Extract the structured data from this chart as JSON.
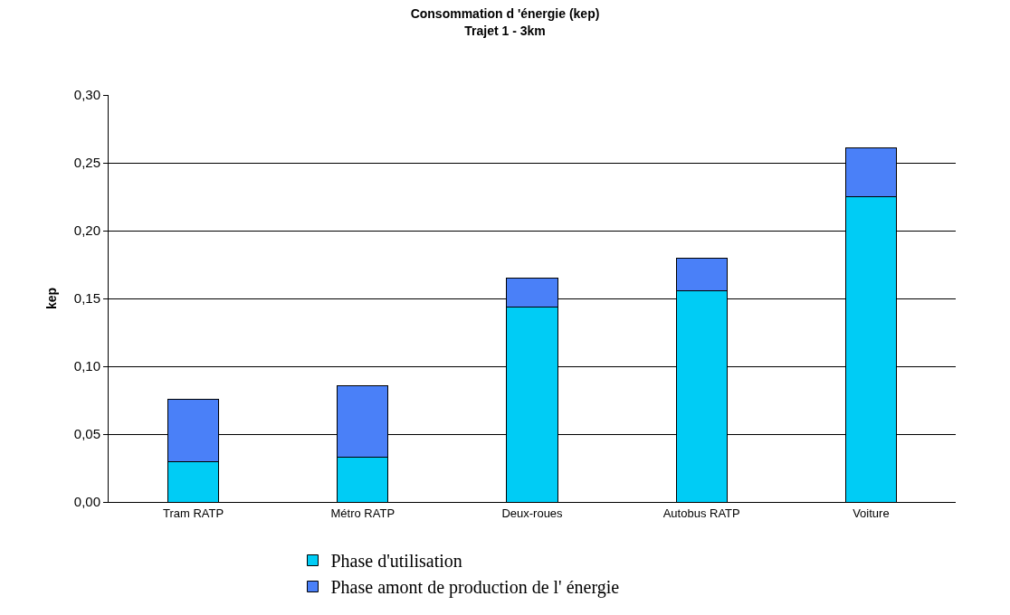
{
  "chart_data": {
    "type": "bar",
    "title": "Consommation d 'énergie (kep)",
    "subtitle": "Trajet 1 - 3km",
    "ylabel": "kep",
    "categories": [
      "Tram RATP",
      "Métro RATP",
      "Deux-roues",
      "Autobus RATP",
      "Voiture"
    ],
    "stacked": true,
    "series": [
      {
        "name": "Phase d'utilisation",
        "color": "#00ccf5",
        "values": [
          0.03,
          0.033,
          0.144,
          0.156,
          0.225
        ]
      },
      {
        "name": "Phase amont de production de l' énergie",
        "color": "#4a80f8",
        "values": [
          0.046,
          0.053,
          0.021,
          0.024,
          0.036
        ]
      }
    ],
    "ylim": [
      0,
      0.3
    ],
    "yticks": [
      {
        "value": 0,
        "label": "0,00"
      },
      {
        "value": 0.05,
        "label": "0,05"
      },
      {
        "value": 0.1,
        "label": "0,10"
      },
      {
        "value": 0.15,
        "label": "0,15"
      },
      {
        "value": 0.2,
        "label": "0,20"
      },
      {
        "value": 0.25,
        "label": "0,25"
      },
      {
        "value": 0.3,
        "label": "0,30"
      }
    ],
    "grid": "y",
    "legend": "bottom"
  }
}
